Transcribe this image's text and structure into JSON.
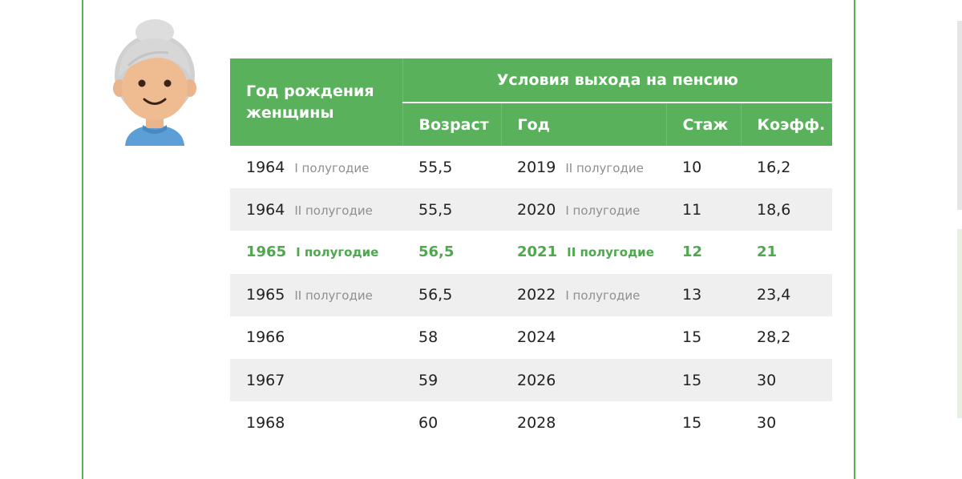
{
  "table": {
    "header": {
      "birth_year": "Год рождения женщины",
      "conditions": "Условия выхода на пенсию",
      "age": "Возраст",
      "year": "Год",
      "experience": "Стаж",
      "coefficient": "Коэфф."
    },
    "rows": [
      {
        "birth_year": "1964",
        "birth_half": "I полугодие",
        "age": "55,5",
        "year": "2019",
        "year_half": "II полугодие",
        "experience": "10",
        "coefficient": "16,2"
      },
      {
        "birth_year": "1964",
        "birth_half": "II полугодие",
        "age": "55,5",
        "year": "2020",
        "year_half": "I полугодие",
        "experience": "11",
        "coefficient": "18,6"
      },
      {
        "birth_year": "1965",
        "birth_half": "I полугодие",
        "age": "56,5",
        "year": "2021",
        "year_half": "II полугодие",
        "experience": "12",
        "coefficient": "21"
      },
      {
        "birth_year": "1965",
        "birth_half": "II полугодие",
        "age": "56,5",
        "year": "2022",
        "year_half": "I полугодие",
        "experience": "13",
        "coefficient": "23,4"
      },
      {
        "birth_year": "1966",
        "birth_half": "",
        "age": "58",
        "year": "2024",
        "year_half": "",
        "experience": "15",
        "coefficient": "28,2"
      },
      {
        "birth_year": "1967",
        "birth_half": "",
        "age": "59",
        "year": "2026",
        "year_half": "",
        "experience": "15",
        "coefficient": "30"
      },
      {
        "birth_year": "1968",
        "birth_half": "",
        "age": "60",
        "year": "2028",
        "year_half": "",
        "experience": "15",
        "coefficient": "30"
      }
    ]
  },
  "colors": {
    "accent_green": "#5ab15b",
    "highlight_text": "#4fa84f",
    "row_alt": "#efefef",
    "half_text": "#8f8f8f"
  },
  "icons": {
    "avatar": "elderly-woman-avatar-icon"
  }
}
